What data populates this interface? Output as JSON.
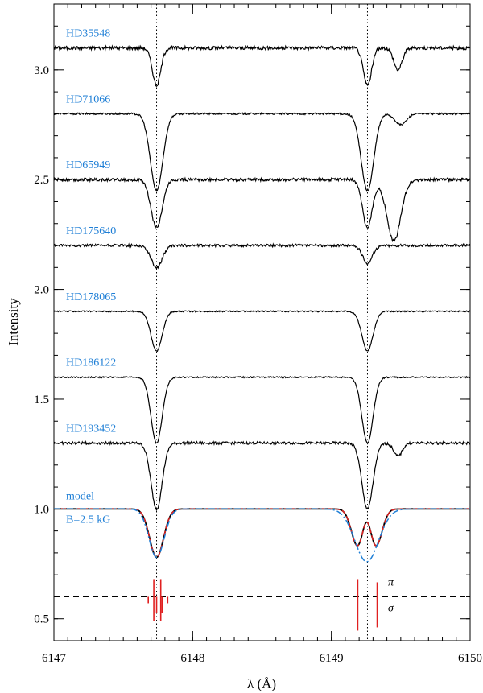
{
  "chart_data": {
    "type": "line",
    "title": "",
    "xlabel": "λ (Å)",
    "ylabel": "Intensity",
    "xlim": [
      6147.0,
      6150.0
    ],
    "ylim": [
      0.4,
      3.3
    ],
    "x_ticks": [
      6147,
      6148,
      6149,
      6150
    ],
    "x_tick_labels": [
      "6147",
      "6148",
      "6149",
      "6150"
    ],
    "y_ticks": [
      0.5,
      1.0,
      1.5,
      2.0,
      2.5,
      3.0
    ],
    "y_tick_labels": [
      "0.5",
      "1.0",
      "1.5",
      "2.0",
      "2.5",
      "3.0"
    ],
    "reference_lines_x": [
      6147.74,
      6149.26
    ],
    "label_color": "#1f7fd6",
    "stars": [
      {
        "name": "HD35548",
        "offset": 3.1,
        "line1_depth": 0.17,
        "line1_width": 0.03,
        "line2_depth": 0.17,
        "line2_width": 0.03,
        "extra_depth": 0.1,
        "extra_center": 6149.48,
        "extra_width": 0.03,
        "noise": 0.008
      },
      {
        "name": "HD71066",
        "offset": 2.8,
        "line1_depth": 0.35,
        "line1_width": 0.045,
        "line2_depth": 0.35,
        "line2_width": 0.045,
        "extra_depth": 0.05,
        "extra_center": 6149.5,
        "extra_width": 0.04,
        "noise": 0.004
      },
      {
        "name": "HD65949",
        "offset": 2.5,
        "line1_depth": 0.22,
        "line1_width": 0.04,
        "line2_depth": 0.22,
        "line2_width": 0.035,
        "extra_depth": 0.28,
        "extra_center": 6149.45,
        "extra_width": 0.05,
        "noise": 0.007
      },
      {
        "name": "HD175640",
        "offset": 2.2,
        "line1_depth": 0.1,
        "line1_width": 0.04,
        "line2_depth": 0.08,
        "line2_width": 0.035,
        "extra_depth": 0.0,
        "extra_center": 6149.5,
        "extra_width": 0.04,
        "noise": 0.006
      },
      {
        "name": "HD178065",
        "offset": 1.9,
        "line1_depth": 0.18,
        "line1_width": 0.04,
        "line2_depth": 0.18,
        "line2_width": 0.04,
        "extra_depth": 0.0,
        "extra_center": 6149.5,
        "extra_width": 0.04,
        "noise": 0.003
      },
      {
        "name": "HD186122",
        "offset": 1.6,
        "line1_depth": 0.3,
        "line1_width": 0.04,
        "line2_depth": 0.3,
        "line2_width": 0.04,
        "extra_depth": 0.0,
        "extra_center": 6149.5,
        "extra_width": 0.04,
        "noise": 0.003
      },
      {
        "name": "HD193452",
        "offset": 1.3,
        "line1_depth": 0.3,
        "line1_width": 0.04,
        "line2_depth": 0.3,
        "line2_width": 0.04,
        "extra_depth": 0.06,
        "extra_center": 6149.48,
        "extra_width": 0.03,
        "noise": 0.006
      }
    ],
    "model": {
      "label_line1": "model",
      "label_line2": "B=2.5 kG",
      "continuum": 1.0,
      "line1_center": 6147.74,
      "line1_min": 0.78,
      "line2_centers": [
        6149.19,
        6149.32
      ],
      "line2_min": 0.83,
      "line2_mid": 0.87,
      "series": [
        {
          "name": "model black",
          "color": "#000000",
          "dash": ""
        },
        {
          "name": "model red",
          "color": "#e02020",
          "dash": "6,3"
        },
        {
          "name": "model blue dash-dot",
          "color": "#1f7fd6",
          "dash": "8,3,2,3"
        }
      ]
    },
    "zeeman": {
      "baseline_y": 0.6,
      "pi_label": "π",
      "sigma_label": "σ",
      "line1_pi": [
        6147.72,
        6147.77
      ],
      "line1_sigma": [
        6147.68,
        6147.74,
        6147.78,
        6147.82
      ],
      "line2_pi": [
        6149.19
      ],
      "line2_sigma": [
        6149.33
      ]
    }
  }
}
